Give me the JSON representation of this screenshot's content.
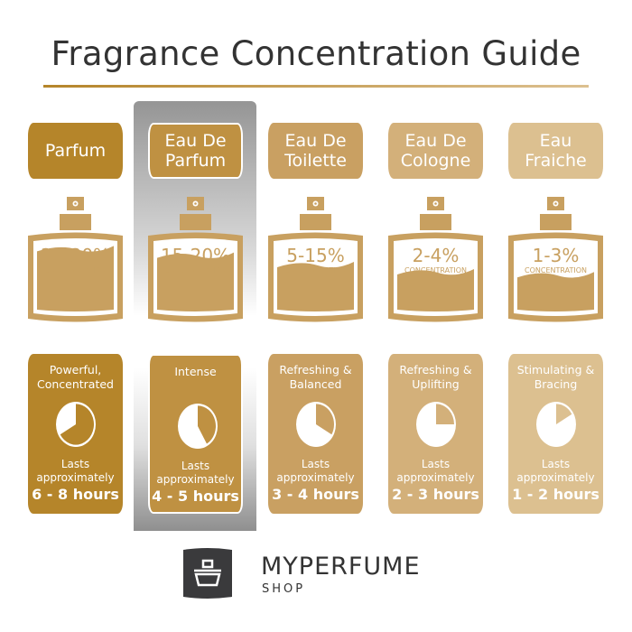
{
  "title": "Fragrance Concentration Guide",
  "columns": [
    {
      "name": "Parfum",
      "concentration": "20-30%",
      "concentration_label": "CONCENTRATION",
      "description": "Powerful, Concentrated",
      "lasts_label": "Lasts approximately",
      "duration": "6 - 8 hours",
      "color": "#b5852a",
      "fill_level": 0.42,
      "pie_hours": 8,
      "highlighted": false
    },
    {
      "name": "Eau De Parfum",
      "concentration": "15-20%",
      "concentration_label": "CONCENTRATION",
      "description": "Intense",
      "lasts_label": "Lasts approximately",
      "duration": "4 - 5 hours",
      "color": "#bf9142",
      "fill_level": 0.33,
      "pie_hours": 5,
      "highlighted": true
    },
    {
      "name": "Eau De Toilette",
      "concentration": "5-15%",
      "concentration_label": "CONCENTRATION",
      "description": "Refreshing & Balanced",
      "lasts_label": "Lasts approximately",
      "duration": "3 - 4 hours",
      "color": "#c9a062",
      "fill_level": 0.2,
      "pie_hours": 4,
      "highlighted": false
    },
    {
      "name": "Eau De Cologne",
      "concentration": "2-4%",
      "concentration_label": "CONCENTRATION",
      "description": "Refreshing & Uplifting",
      "lasts_label": "Lasts approximately",
      "duration": "2 - 3 hours",
      "color": "#d3b07a",
      "fill_level": 0.1,
      "pie_hours": 3,
      "highlighted": false
    },
    {
      "name": "Eau Fraiche",
      "concentration": "1-3%",
      "concentration_label": "CONCENTRATION",
      "description": "Stimulating & Bracing",
      "lasts_label": "Lasts approximately",
      "duration": "1 - 2 hours",
      "color": "#dcc090",
      "fill_level": 0.06,
      "pie_hours": 2,
      "highlighted": false
    }
  ],
  "bottle_color": "#c8a060",
  "brand": {
    "name": "MYPERFUME",
    "sub": "SHOP",
    "logo": "perfume-bottle-logo",
    "logo_color": "#3a3a3c"
  }
}
